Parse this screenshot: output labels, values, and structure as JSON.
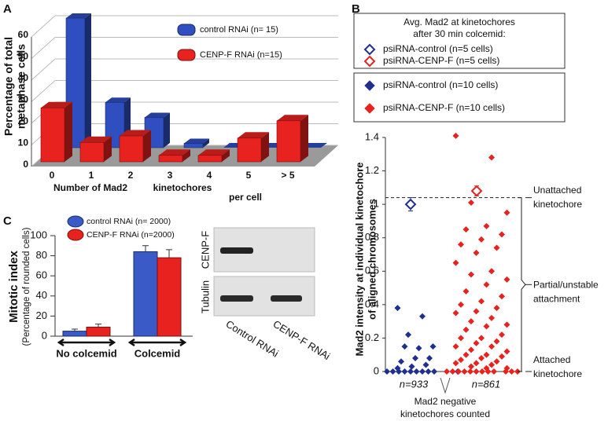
{
  "chart_data": [
    {
      "type": "bar3d",
      "panel_label": "A",
      "ylabel": [
        "Percentage of total",
        "metaphase cells"
      ],
      "xlabel": [
        "Number of Mad2",
        "kinetochores",
        "per cell"
      ],
      "categories": [
        "0",
        "1",
        "2",
        "3",
        "4",
        "5",
        "> 5"
      ],
      "series": [
        {
          "name": "control RNAi (n= 15)",
          "color": "#2f4fc0",
          "values": [
            60,
            21,
            14,
            2,
            0,
            0,
            0
          ]
        },
        {
          "name": "CENP-F RNAi (n=15)",
          "color": "#e8231f",
          "values": [
            25,
            9,
            12,
            3,
            3,
            11,
            19
          ]
        }
      ],
      "ylim": [
        0,
        60
      ],
      "yticks": [
        0,
        10,
        20,
        30,
        40,
        50,
        60
      ],
      "grid": true
    },
    {
      "type": "strip",
      "panel_label": "B",
      "ylabel": [
        "Mad2 intensity at individual kinetochore",
        "of aligned chromosomes"
      ],
      "legend_title": [
        "Avg. Mad2 at kinetochores",
        "after 30 min colcemid:"
      ],
      "categories": [
        "n=933",
        "n=861"
      ],
      "xlabel": [
        "Mad2 negative",
        "kinetochores counted"
      ],
      "series": [
        {
          "name": "psiRNA-control (n=5 cells)",
          "color": "#1f2f8f",
          "marker": "open",
          "group": 0,
          "values": [
            1.0
          ],
          "errors": [
            0.04
          ]
        },
        {
          "name": "psiRNA-CENP-F (n=5 cells)",
          "color": "#e8231f",
          "marker": "open",
          "group": 1,
          "values": [
            1.08
          ],
          "errors": [
            0.03
          ]
        },
        {
          "name": "psiRNA-control (n=10 cells)",
          "color": "#1f2f8f",
          "marker": "filled",
          "group": 0,
          "values": [
            0.38,
            0.33,
            0.22,
            0.15,
            0.14,
            0.15,
            0.08,
            0.08,
            0.06,
            0.04,
            0.03,
            0.02,
            0,
            0,
            0,
            0,
            0,
            0,
            0,
            0,
            0,
            0
          ]
        },
        {
          "name": "psiRNA-CENP-F (n=10 cells)",
          "color": "#e8231f",
          "marker": "filled",
          "group": 1,
          "values": [
            1.41,
            1.28,
            1.01,
            0.95,
            0.87,
            0.85,
            0.82,
            0.79,
            0.76,
            0.74,
            0.71,
            0.65,
            0.6,
            0.58,
            0.55,
            0.52,
            0.48,
            0.45,
            0.42,
            0.4,
            0.38,
            0.36,
            0.35,
            0.32,
            0.3,
            0.28,
            0.27,
            0.25,
            0.22,
            0.2,
            0.2,
            0.18,
            0.17,
            0.15,
            0.15,
            0.13,
            0.12,
            0.1,
            0.1,
            0.09,
            0.08,
            0.07,
            0.06,
            0.05,
            0.05,
            0.04,
            0.03,
            0.02,
            0.02,
            0,
            0,
            0,
            0,
            0,
            0,
            0,
            0,
            0,
            0,
            0,
            0
          ]
        }
      ],
      "reference_line": 1.04,
      "annotations": [
        [
          "Unattached",
          "kinetochore"
        ],
        [
          "Partial/unstable",
          "attachment"
        ],
        [
          "Attached",
          "kinetochore"
        ]
      ],
      "ylim": [
        0,
        1.4
      ],
      "yticks": [
        0,
        0.2,
        0.4,
        0.6,
        0.8,
        1,
        1.2,
        1.4
      ]
    },
    {
      "type": "bar",
      "panel_label": "C",
      "ylabel": [
        "Mitotic index",
        "(Percentage of rounded cells)"
      ],
      "categories": [
        "No colcemid",
        "Colcemid"
      ],
      "series": [
        {
          "name": "control RNAi (n= 2000)",
          "color": "#3a5bc7",
          "values": [
            5,
            84
          ],
          "errors": [
            2,
            6
          ]
        },
        {
          "name": "CENP-F RNAi (n=2000)",
          "color": "#e8231f",
          "values": [
            9,
            78
          ],
          "errors": [
            3,
            8
          ]
        }
      ],
      "ylim": [
        0,
        100
      ],
      "yticks": [
        0,
        20,
        40,
        60,
        80,
        100
      ],
      "blot": {
        "rows": [
          "CENP-F",
          "Tubulin"
        ],
        "lanes": [
          "Control RNAi",
          "CENP-F RNAi"
        ]
      }
    }
  ]
}
